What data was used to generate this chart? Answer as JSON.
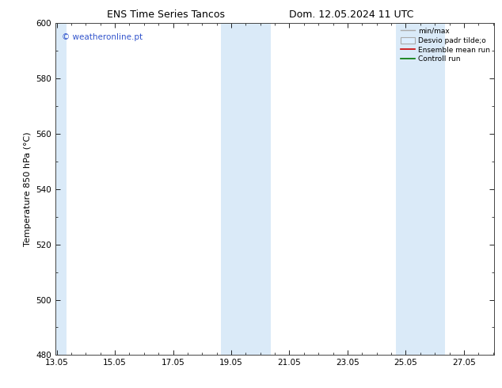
{
  "title_left": "ENS Time Series Tancos",
  "title_right": "Dom. 12.05.2024 11 UTC",
  "ylabel": "Temperature 850 hPa (°C)",
  "ylim": [
    480,
    600
  ],
  "yticks": [
    480,
    500,
    520,
    540,
    560,
    580,
    600
  ],
  "xtick_labels": [
    "13.05",
    "15.05",
    "17.05",
    "19.05",
    "21.05",
    "23.05",
    "25.05",
    "27.05"
  ],
  "xtick_positions": [
    0,
    2,
    4,
    6,
    8,
    10,
    12,
    14
  ],
  "xlim": [
    -0.05,
    15.05
  ],
  "shaded_bands": [
    {
      "start": -0.05,
      "end": 0.35
    },
    {
      "start": 5.65,
      "end": 7.35
    },
    {
      "start": 11.65,
      "end": 13.35
    }
  ],
  "shade_color": "#daeaf8",
  "watermark": "© weatheronline.pt",
  "watermark_color": "#3355cc",
  "legend_items": [
    {
      "label": "min/max",
      "color": "#aaaaaa",
      "lw": 1.0,
      "type": "line"
    },
    {
      "label": "Desvio padr tilde;o",
      "facecolor": "#ddeeff",
      "edgecolor": "#aaaaaa",
      "type": "fill"
    },
    {
      "label": "Ensemble mean run",
      "color": "#cc0000",
      "lw": 1.2,
      "type": "line"
    },
    {
      "label": "Controll run",
      "color": "#007700",
      "lw": 1.2,
      "type": "line"
    }
  ],
  "bg_color": "#ffffff",
  "axes_bg": "#ffffff",
  "title_fontsize": 9,
  "label_fontsize": 8,
  "tick_fontsize": 7.5
}
